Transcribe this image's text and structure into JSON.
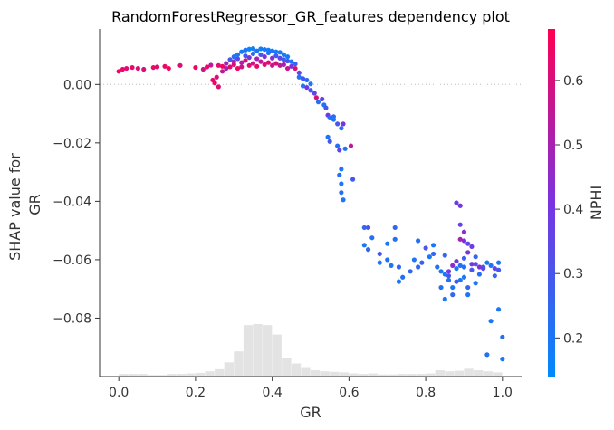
{
  "chart_data": {
    "type": "scatter",
    "title": "RandomForestRegressor_GR_features dependency plot",
    "xlabel": "GR",
    "ylabel_lines": [
      "SHAP value for",
      "GR"
    ],
    "xlim": [
      -0.05,
      1.05
    ],
    "ylim": [
      -0.1,
      0.019
    ],
    "x_ticks": [
      0.0,
      0.2,
      0.4,
      0.6,
      0.8,
      1.0
    ],
    "x_tick_labels": [
      "0.0",
      "0.2",
      "0.4",
      "0.6",
      "0.8",
      "1.0"
    ],
    "y_ticks": [
      0.0,
      -0.02,
      -0.04,
      -0.06,
      -0.08
    ],
    "y_tick_labels": [
      "0.00",
      "−0.02",
      "−0.04",
      "−0.06",
      "−0.08"
    ],
    "zero_line": 0.0,
    "colorbar": {
      "label": "NPHI",
      "range": [
        0.14,
        0.68
      ],
      "ticks": [
        0.2,
        0.3,
        0.4,
        0.5,
        0.6
      ],
      "tick_labels": [
        "0.2",
        "0.3",
        "0.4",
        "0.5",
        "0.6"
      ],
      "colors": [
        "#008afb",
        "#7a33e0",
        "#ff0051"
      ]
    },
    "histogram": {
      "color": "#cccccc",
      "bin_edges": [
        0.0,
        0.025,
        0.05,
        0.075,
        0.1,
        0.125,
        0.15,
        0.175,
        0.2,
        0.225,
        0.25,
        0.275,
        0.3,
        0.325,
        0.35,
        0.375,
        0.4,
        0.425,
        0.45,
        0.475,
        0.5,
        0.525,
        0.55,
        0.575,
        0.6,
        0.625,
        0.65,
        0.675,
        0.7,
        0.725,
        0.75,
        0.775,
        0.8,
        0.825,
        0.85,
        0.875,
        0.9,
        0.925,
        0.95,
        0.975,
        1.0
      ],
      "counts": [
        0.05,
        0.05,
        0.05,
        0.03,
        0.03,
        0.05,
        0.05,
        0.06,
        0.07,
        0.1,
        0.14,
        0.27,
        0.48,
        0.98,
        1.0,
        0.98,
        0.8,
        0.35,
        0.25,
        0.18,
        0.12,
        0.1,
        0.09,
        0.08,
        0.06,
        0.05,
        0.06,
        0.04,
        0.04,
        0.05,
        0.05,
        0.05,
        0.06,
        0.12,
        0.1,
        0.11,
        0.15,
        0.12,
        0.1,
        0.08
      ]
    },
    "series": [
      {
        "points": [
          [
            0.0,
            0.0045,
            0.65
          ],
          [
            0.01,
            0.0052,
            0.64
          ],
          [
            0.02,
            0.0055,
            0.62
          ],
          [
            0.035,
            0.0058,
            0.63
          ],
          [
            0.05,
            0.0055,
            0.61
          ],
          [
            0.065,
            0.0052,
            0.6
          ],
          [
            0.09,
            0.0058,
            0.64
          ],
          [
            0.1,
            0.006,
            0.62
          ],
          [
            0.12,
            0.0062,
            0.63
          ],
          [
            0.13,
            0.0055,
            0.66
          ],
          [
            0.16,
            0.0065,
            0.61
          ],
          [
            0.2,
            0.0058,
            0.65
          ],
          [
            0.22,
            0.0052,
            0.58
          ],
          [
            0.23,
            0.006,
            0.64
          ],
          [
            0.24,
            0.0066,
            0.55
          ],
          [
            0.245,
            0.0015,
            0.63
          ],
          [
            0.25,
            0.0005,
            0.66
          ],
          [
            0.255,
            0.0025,
            0.6
          ],
          [
            0.26,
            -0.0008,
            0.62
          ],
          [
            0.27,
            0.0045,
            0.55
          ],
          [
            0.26,
            0.0065,
            0.62
          ],
          [
            0.27,
            0.0062,
            0.65
          ],
          [
            0.28,
            0.0055,
            0.5
          ],
          [
            0.28,
            0.0072,
            0.48
          ],
          [
            0.29,
            0.006,
            0.62
          ],
          [
            0.29,
            0.0085,
            0.3
          ],
          [
            0.3,
            0.0078,
            0.45
          ],
          [
            0.3,
            0.0068,
            0.6
          ],
          [
            0.3,
            0.0095,
            0.22
          ],
          [
            0.31,
            0.0055,
            0.65
          ],
          [
            0.31,
            0.0088,
            0.35
          ],
          [
            0.31,
            0.0102,
            0.2
          ],
          [
            0.32,
            0.006,
            0.58
          ],
          [
            0.32,
            0.0075,
            0.52
          ],
          [
            0.32,
            0.0112,
            0.18
          ],
          [
            0.33,
            0.0082,
            0.6
          ],
          [
            0.33,
            0.0098,
            0.3
          ],
          [
            0.33,
            0.0118,
            0.2
          ],
          [
            0.34,
            0.0065,
            0.62
          ],
          [
            0.34,
            0.0092,
            0.4
          ],
          [
            0.34,
            0.0121,
            0.16
          ],
          [
            0.35,
            0.0072,
            0.58
          ],
          [
            0.35,
            0.0105,
            0.25
          ],
          [
            0.35,
            0.0123,
            0.18
          ],
          [
            0.36,
            0.0062,
            0.63
          ],
          [
            0.36,
            0.0088,
            0.5
          ],
          [
            0.36,
            0.0115,
            0.2
          ],
          [
            0.37,
            0.0078,
            0.55
          ],
          [
            0.37,
            0.0102,
            0.3
          ],
          [
            0.37,
            0.0122,
            0.17
          ],
          [
            0.38,
            0.0068,
            0.6
          ],
          [
            0.38,
            0.0095,
            0.42
          ],
          [
            0.38,
            0.012,
            0.19
          ],
          [
            0.39,
            0.0075,
            0.62
          ],
          [
            0.39,
            0.0108,
            0.22
          ],
          [
            0.39,
            0.0118,
            0.18
          ],
          [
            0.4,
            0.0065,
            0.57
          ],
          [
            0.4,
            0.009,
            0.45
          ],
          [
            0.4,
            0.0115,
            0.2
          ],
          [
            0.41,
            0.0072,
            0.6
          ],
          [
            0.41,
            0.0098,
            0.28
          ],
          [
            0.41,
            0.0112,
            0.19
          ],
          [
            0.42,
            0.0065,
            0.55
          ],
          [
            0.42,
            0.009,
            0.35
          ],
          [
            0.42,
            0.011,
            0.2
          ],
          [
            0.43,
            0.0068,
            0.5
          ],
          [
            0.43,
            0.0085,
            0.28
          ],
          [
            0.43,
            0.0102,
            0.18
          ],
          [
            0.44,
            0.0055,
            0.58
          ],
          [
            0.44,
            0.008,
            0.3
          ],
          [
            0.44,
            0.0095,
            0.2
          ],
          [
            0.45,
            0.0062,
            0.4
          ],
          [
            0.45,
            0.0078,
            0.2
          ],
          [
            0.46,
            0.0055,
            0.62
          ],
          [
            0.46,
            0.007,
            0.25
          ],
          [
            0.47,
            0.004,
            0.35
          ],
          [
            0.47,
            0.0025,
            0.2
          ],
          [
            0.48,
            0.002,
            0.3
          ],
          [
            0.48,
            -0.0005,
            0.2
          ],
          [
            0.49,
            -0.001,
            0.4
          ],
          [
            0.49,
            0.0015,
            0.22
          ],
          [
            0.5,
            -0.002,
            0.3
          ],
          [
            0.5,
            0.0002,
            0.2
          ],
          [
            0.51,
            -0.003,
            0.35
          ],
          [
            0.515,
            -0.0045,
            0.6
          ],
          [
            0.52,
            -0.006,
            0.22
          ],
          [
            0.53,
            -0.005,
            0.38
          ],
          [
            0.535,
            -0.007,
            0.2
          ],
          [
            0.54,
            -0.008,
            0.3
          ],
          [
            0.545,
            -0.0105,
            0.4
          ],
          [
            0.55,
            -0.0115,
            0.2
          ],
          [
            0.56,
            -0.011,
            0.25
          ],
          [
            0.56,
            -0.012,
            0.2
          ],
          [
            0.57,
            -0.0135,
            0.3
          ],
          [
            0.58,
            -0.015,
            0.22
          ],
          [
            0.585,
            -0.0135,
            0.4
          ],
          [
            0.545,
            -0.018,
            0.2
          ],
          [
            0.55,
            -0.0195,
            0.3
          ],
          [
            0.57,
            -0.021,
            0.22
          ],
          [
            0.575,
            -0.0225,
            0.35
          ],
          [
            0.59,
            -0.022,
            0.2
          ],
          [
            0.605,
            -0.021,
            0.55
          ],
          [
            0.58,
            -0.029,
            0.2
          ],
          [
            0.575,
            -0.031,
            0.22
          ],
          [
            0.61,
            -0.0325,
            0.3
          ],
          [
            0.58,
            -0.034,
            0.2
          ],
          [
            0.58,
            -0.037,
            0.22
          ],
          [
            0.585,
            -0.0395,
            0.2
          ],
          [
            0.64,
            -0.049,
            0.25
          ],
          [
            0.65,
            -0.049,
            0.3
          ],
          [
            0.66,
            -0.0525,
            0.22
          ],
          [
            0.64,
            -0.055,
            0.2
          ],
          [
            0.65,
            -0.0565,
            0.25
          ],
          [
            0.68,
            -0.058,
            0.3
          ],
          [
            0.68,
            -0.061,
            0.2
          ],
          [
            0.7,
            -0.0545,
            0.2
          ],
          [
            0.72,
            -0.049,
            0.25
          ],
          [
            0.72,
            -0.053,
            0.22
          ],
          [
            0.7,
            -0.06,
            0.22
          ],
          [
            0.71,
            -0.062,
            0.2
          ],
          [
            0.73,
            -0.0625,
            0.25
          ],
          [
            0.73,
            -0.0675,
            0.2
          ],
          [
            0.78,
            -0.0535,
            0.22
          ],
          [
            0.77,
            -0.06,
            0.2
          ],
          [
            0.78,
            -0.0625,
            0.25
          ],
          [
            0.8,
            -0.056,
            0.3
          ],
          [
            0.82,
            -0.055,
            0.2
          ],
          [
            0.81,
            -0.059,
            0.2
          ],
          [
            0.83,
            -0.0625,
            0.22
          ],
          [
            0.84,
            -0.064,
            0.2
          ],
          [
            0.85,
            -0.0585,
            0.25
          ],
          [
            0.85,
            -0.065,
            0.2
          ],
          [
            0.86,
            -0.0655,
            0.3
          ],
          [
            0.86,
            -0.067,
            0.22
          ],
          [
            0.87,
            -0.0695,
            0.2
          ],
          [
            0.87,
            -0.072,
            0.25
          ],
          [
            0.88,
            -0.063,
            0.2
          ],
          [
            0.88,
            -0.0675,
            0.3
          ],
          [
            0.89,
            -0.062,
            0.22
          ],
          [
            0.89,
            -0.067,
            0.2
          ],
          [
            0.9,
            -0.0595,
            0.28
          ],
          [
            0.9,
            -0.0625,
            0.22
          ],
          [
            0.9,
            -0.066,
            0.2
          ],
          [
            0.91,
            -0.0695,
            0.25
          ],
          [
            0.91,
            -0.072,
            0.2
          ],
          [
            0.92,
            -0.0635,
            0.3
          ],
          [
            0.93,
            -0.059,
            0.25
          ],
          [
            0.93,
            -0.068,
            0.2
          ],
          [
            0.94,
            -0.065,
            0.22
          ],
          [
            0.95,
            -0.0625,
            0.28
          ],
          [
            0.96,
            -0.061,
            0.2
          ],
          [
            0.97,
            -0.062,
            0.22
          ],
          [
            0.98,
            -0.063,
            0.35
          ],
          [
            0.98,
            -0.0655,
            0.25
          ],
          [
            0.99,
            -0.061,
            0.2
          ],
          [
            0.99,
            -0.0635,
            0.3
          ],
          [
            0.99,
            -0.077,
            0.2
          ],
          [
            1.0,
            -0.0865,
            0.22
          ],
          [
            1.0,
            -0.094,
            0.2
          ],
          [
            0.97,
            -0.081,
            0.2
          ],
          [
            0.96,
            -0.0925,
            0.22
          ],
          [
            0.88,
            -0.0405,
            0.38
          ],
          [
            0.89,
            -0.0415,
            0.4
          ],
          [
            0.89,
            -0.048,
            0.35
          ],
          [
            0.9,
            -0.0505,
            0.45
          ],
          [
            0.9,
            -0.0535,
            0.4
          ],
          [
            0.91,
            -0.0545,
            0.35
          ],
          [
            0.91,
            -0.0575,
            0.42
          ],
          [
            0.92,
            -0.0555,
            0.38
          ],
          [
            0.92,
            -0.0615,
            0.4
          ],
          [
            0.93,
            -0.0615,
            0.35
          ],
          [
            0.94,
            -0.0625,
            0.42
          ],
          [
            0.95,
            -0.063,
            0.35
          ],
          [
            0.89,
            -0.053,
            0.5
          ],
          [
            0.87,
            -0.062,
            0.45
          ],
          [
            0.88,
            -0.0605,
            0.4
          ],
          [
            0.86,
            -0.064,
            0.38
          ],
          [
            0.84,
            -0.0695,
            0.22
          ],
          [
            0.85,
            -0.0735,
            0.2
          ],
          [
            0.82,
            -0.058,
            0.25
          ],
          [
            0.79,
            -0.061,
            0.28
          ],
          [
            0.76,
            -0.064,
            0.25
          ],
          [
            0.74,
            -0.066,
            0.22
          ]
        ]
      }
    ]
  }
}
